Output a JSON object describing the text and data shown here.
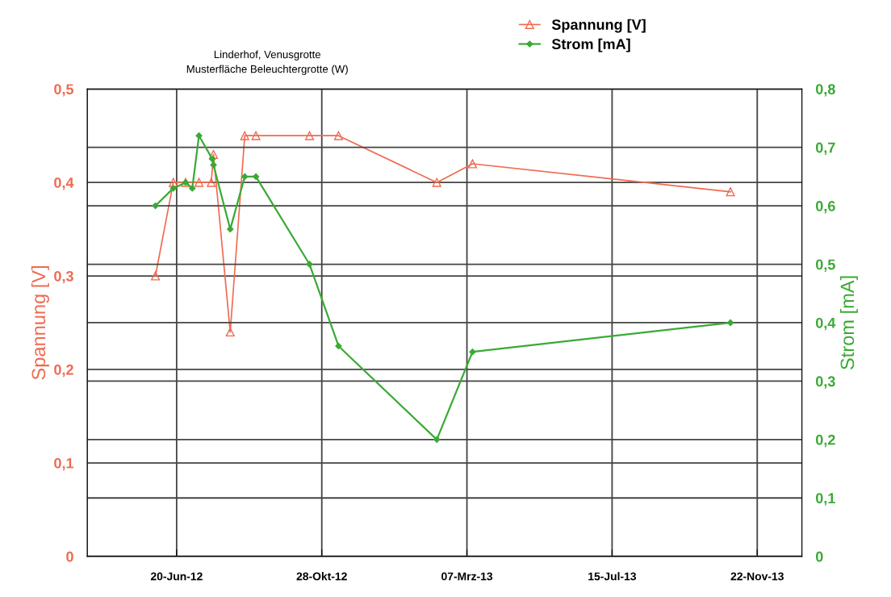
{
  "chart_data": {
    "type": "line",
    "title": "Linderhof, Venusgrotte\nMusterfläche Beleuchtergrotte (W)",
    "ylabel": "Spannung [V]",
    "y2label": "Strom [mA]",
    "series": [
      {
        "name": "Spannung [V]",
        "color": "#f06a50",
        "marker": "triangle",
        "x": [
          "2012-06-01",
          "2012-06-17",
          "2012-06-28",
          "2012-07-10",
          "2012-07-21",
          "2012-07-23",
          "2012-08-07",
          "2012-08-20",
          "2012-08-30",
          "2012-10-17",
          "2012-11-12",
          "2013-02-08",
          "2013-03-12",
          "2013-10-29"
        ],
        "values": [
          0.3,
          0.4,
          0.4,
          0.4,
          0.4,
          0.43,
          0.24,
          0.45,
          0.45,
          0.45,
          0.45,
          0.4,
          0.42,
          0.39
        ]
      },
      {
        "name": "Strom [mA]",
        "color": "#3aaa35",
        "marker": "diamond",
        "axis": "y2",
        "x": [
          "2012-06-01",
          "2012-06-17",
          "2012-06-28",
          "2012-07-04",
          "2012-07-10",
          "2012-07-22",
          "2012-07-23",
          "2012-08-07",
          "2012-08-20",
          "2012-08-30",
          "2012-10-17",
          "2012-11-12",
          "2013-02-08",
          "2013-03-12",
          "2013-10-29"
        ],
        "values": [
          0.6,
          0.63,
          0.64,
          0.63,
          0.72,
          0.68,
          0.67,
          0.56,
          0.65,
          0.65,
          0.5,
          0.36,
          0.2,
          0.35,
          0.4
        ]
      }
    ],
    "xlim": [
      "2012-04-01",
      "2014-01-01"
    ],
    "xticks": [
      {
        "value": "2012-06-20",
        "label": "20-Jun-12"
      },
      {
        "value": "2012-10-28",
        "label": "28-Okt-12"
      },
      {
        "value": "2013-03-07",
        "label": "07-Mrz-13"
      },
      {
        "value": "2013-07-15",
        "label": "15-Jul-13"
      },
      {
        "value": "2013-11-22",
        "label": "22-Nov-13"
      }
    ],
    "ylim": [
      0,
      0.5
    ],
    "yticks": [
      0,
      {
        "value": 0.1,
        "label": "0,1"
      },
      {
        "value": 0.2,
        "label": "0,2"
      },
      {
        "value": 0.3,
        "label": "0,3"
      },
      {
        "value": 0.4,
        "label": "0,4"
      },
      {
        "value": 0.5,
        "label": "0,5"
      }
    ],
    "y2lim": [
      0,
      0.8
    ],
    "y2ticks": [
      0,
      {
        "value": 0.1,
        "label": "0,1"
      },
      {
        "value": 0.2,
        "label": "0,2"
      },
      {
        "value": 0.3,
        "label": "0,3"
      },
      {
        "value": 0.4,
        "label": "0,4"
      },
      {
        "value": 0.5,
        "label": "0,5"
      },
      {
        "value": 0.6,
        "label": "0,6"
      },
      {
        "value": 0.7,
        "label": "0,7"
      },
      {
        "value": 0.8,
        "label": "0,8"
      }
    ],
    "grid": true,
    "legend": "top right"
  }
}
